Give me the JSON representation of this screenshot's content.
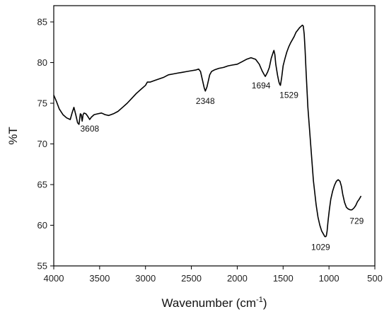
{
  "chart_data": {
    "type": "line",
    "title": "",
    "xlabel": "Wavenumber (cm",
    "xlabel_sup": "-1",
    "xlabel_tail": ")",
    "ylabel": "%T",
    "xlim": [
      4000,
      500
    ],
    "ylim": [
      55,
      87
    ],
    "x_ticks": [
      4000,
      3500,
      3000,
      2500,
      2000,
      1500,
      1000,
      500
    ],
    "y_ticks": [
      55,
      60,
      65,
      70,
      75,
      80,
      85
    ],
    "grid": false,
    "line_color": "#000000",
    "series": [
      {
        "x": [
          4000,
          3970,
          3940,
          3900,
          3860,
          3820,
          3800,
          3780,
          3760,
          3740,
          3725,
          3710,
          3700,
          3690,
          3680,
          3670,
          3650,
          3630,
          3608,
          3590,
          3560,
          3520,
          3480,
          3440,
          3400,
          3350,
          3300,
          3250,
          3200,
          3150,
          3100,
          3050,
          3000,
          2980,
          2950,
          2900,
          2850,
          2800,
          2750,
          2700,
          2650,
          2600,
          2550,
          2500,
          2450,
          2420,
          2400,
          2380,
          2360,
          2348,
          2330,
          2300,
          2280,
          2250,
          2200,
          2150,
          2100,
          2050,
          2000,
          1950,
          1900,
          1850,
          1800,
          1760,
          1730,
          1710,
          1694,
          1670,
          1650,
          1630,
          1610,
          1600,
          1590,
          1580,
          1560,
          1545,
          1535,
          1529,
          1515,
          1500,
          1480,
          1460,
          1440,
          1420,
          1400,
          1380,
          1360,
          1340,
          1320,
          1300,
          1290,
          1280,
          1270,
          1260,
          1250,
          1230,
          1200,
          1170,
          1140,
          1120,
          1100,
          1080,
          1060,
          1045,
          1035,
          1029,
          1020,
          1010,
          995,
          980,
          960,
          940,
          920,
          900,
          880,
          865,
          850,
          830,
          810,
          790,
          770,
          750,
          729,
          710,
          690,
          670,
          660,
          650
        ],
        "y": [
          76.0,
          75.2,
          74.3,
          73.6,
          73.2,
          73.0,
          73.8,
          74.5,
          73.6,
          72.6,
          72.4,
          73.7,
          73.6,
          72.8,
          73.6,
          73.8,
          73.7,
          73.4,
          73.0,
          73.3,
          73.6,
          73.7,
          73.8,
          73.6,
          73.5,
          73.7,
          74.0,
          74.5,
          75.0,
          75.6,
          76.2,
          76.7,
          77.2,
          77.6,
          77.6,
          77.8,
          78.0,
          78.2,
          78.5,
          78.6,
          78.7,
          78.8,
          78.9,
          79.0,
          79.1,
          79.2,
          78.9,
          77.9,
          76.9,
          76.5,
          77.0,
          78.5,
          78.9,
          79.1,
          79.3,
          79.4,
          79.6,
          79.7,
          79.8,
          80.1,
          80.4,
          80.6,
          80.4,
          79.8,
          79.0,
          78.6,
          78.3,
          78.8,
          79.4,
          80.5,
          81.2,
          81.5,
          81.0,
          79.8,
          78.4,
          77.6,
          77.3,
          77.2,
          78.2,
          79.6,
          80.5,
          81.3,
          81.9,
          82.4,
          82.8,
          83.2,
          83.7,
          84.0,
          84.3,
          84.5,
          84.6,
          84.5,
          83.5,
          81.5,
          79.0,
          74.5,
          70.0,
          65.5,
          62.5,
          61.0,
          60.0,
          59.3,
          58.9,
          58.6,
          58.6,
          58.7,
          59.3,
          60.5,
          62.0,
          63.2,
          64.2,
          64.9,
          65.4,
          65.6,
          65.4,
          64.8,
          63.8,
          62.8,
          62.2,
          62.0,
          61.9,
          61.9,
          62.1,
          62.4,
          62.9,
          63.2,
          63.4,
          63.6
        ]
      }
    ],
    "annotations": [
      {
        "text": "3608",
        "x": 3608,
        "y": 73.0,
        "dx": 0,
        "dy": 13
      },
      {
        "text": "2348",
        "x": 2348,
        "y": 76.5,
        "dx": 0,
        "dy": 14
      },
      {
        "text": "1694",
        "x": 1694,
        "y": 78.3,
        "dx": -6,
        "dy": 13
      },
      {
        "text": "1529",
        "x": 1529,
        "y": 77.2,
        "dx": 12,
        "dy": 14
      },
      {
        "text": "1029",
        "x": 1029,
        "y": 58.6,
        "dx": -8,
        "dy": 15
      },
      {
        "text": "729",
        "x": 729,
        "y": 61.9,
        "dx": 4,
        "dy": 16
      }
    ]
  }
}
